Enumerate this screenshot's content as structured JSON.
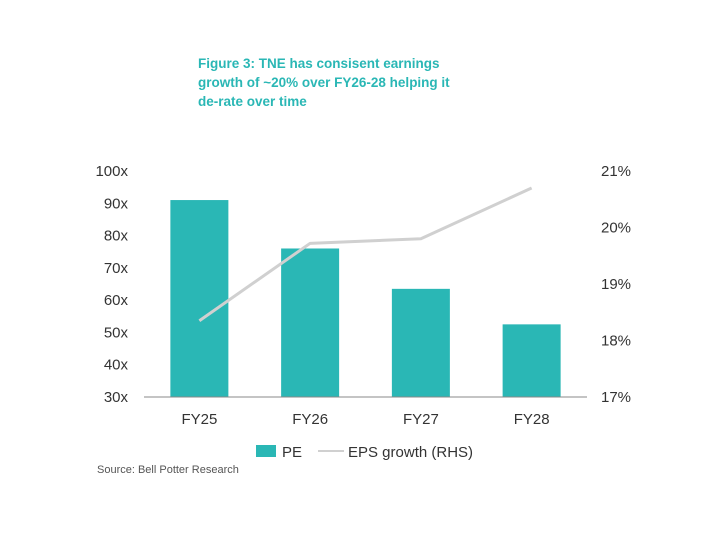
{
  "title_lines": [
    "Figure 3: TNE has consisent earnings",
    "growth of ~20% over FY26-28 helping it",
    "de-rate over time"
  ],
  "source": "Source: Bell Potter Research",
  "colors": {
    "bar": "#2ab7b5",
    "line": "#d0d0d0",
    "title": "#2ab7b5"
  },
  "chart_data": {
    "type": "bar",
    "categories": [
      "FY25",
      "FY26",
      "FY27",
      "FY28"
    ],
    "series": [
      {
        "name": "PE",
        "type": "bar",
        "axis": "left",
        "values": [
          91,
          76,
          63.5,
          52.5
        ]
      },
      {
        "name": "EPS growth (RHS)",
        "type": "line",
        "axis": "right",
        "values": [
          18.35,
          19.72,
          19.8,
          20.7
        ]
      }
    ],
    "ylim": [
      30,
      100
    ],
    "y_ticks": [
      "100x",
      "90x",
      "80x",
      "70x",
      "60x",
      "50x",
      "40x",
      "30x"
    ],
    "y2lim": [
      17,
      21
    ],
    "y2_ticks": [
      "21%",
      "20%",
      "19%",
      "18%",
      "17%"
    ],
    "grid": false,
    "legend_position": "bottom"
  }
}
